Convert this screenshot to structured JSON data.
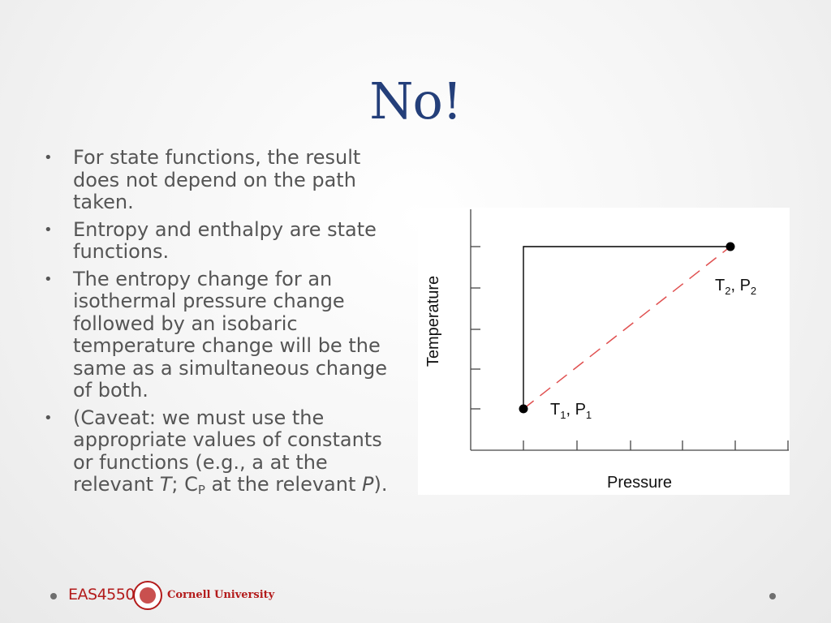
{
  "slide": {
    "title": "No!",
    "bullets": [
      {
        "text": "For state functions, the result does not depend on the path taken."
      },
      {
        "text": "Entropy and enthalpy are state functions."
      },
      {
        "text": "The entropy change for an isothermal pressure change followed by an isobaric temperature change will be the same as a simultaneous change of both."
      },
      {
        "pre": "(Caveat: we must use the appropriate values of constants or functions (e.g., a at the relevant ",
        "T": "T",
        "mid1": "; C",
        "sub": "P",
        "mid2": " at the relevant ",
        "P": "P",
        "post": ")."
      }
    ]
  },
  "figure": {
    "xlabel": "Pressure",
    "ylabel": "Temperature",
    "point1": {
      "label": "T",
      "sub1": "1",
      "sep": ", P",
      "sub2": "1"
    },
    "point2": {
      "label": "T",
      "sub1": "2",
      "sep": ", P",
      "sub2": "2"
    },
    "path_color": "#000000",
    "diagonal_color": "#e05050"
  },
  "footer": {
    "course": "EAS4550",
    "university": "Cornell University",
    "brand_color": "#b31b1b"
  }
}
